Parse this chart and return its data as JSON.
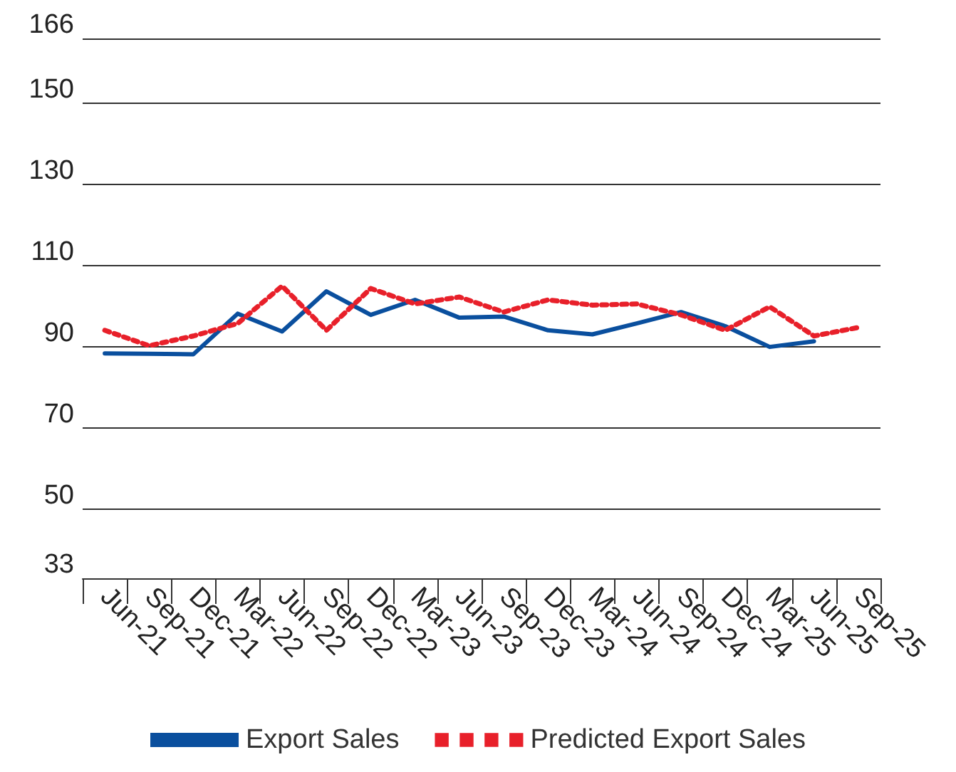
{
  "chart_data": {
    "type": "line",
    "categories": [
      "Jun-21",
      "Sep-21",
      "Dec-21",
      "Mar-22",
      "Jun-22",
      "Sep-22",
      "Dec-22",
      "Mar-23",
      "Jun-23",
      "Sep-23",
      "Dec-23",
      "Mar-24",
      "Jun-24",
      "Sep-24",
      "Dec-24",
      "Mar-25",
      "Jun-25",
      "Sep-25"
    ],
    "series": [
      {
        "name": "Export Sales",
        "color": "#0a4f9e",
        "line_style": "solid",
        "values": [
          88.4,
          88.3,
          88.2,
          98.2,
          93.8,
          103.7,
          97.9,
          101.6,
          97.2,
          97.5,
          94.1,
          93.1,
          95.8,
          98.6,
          95.1,
          90.0,
          91.4,
          null
        ]
      },
      {
        "name": "Predicted Export Sales",
        "color": "#e8202a",
        "line_style": "dotted",
        "values": [
          94.1,
          90.3,
          92.7,
          95.8,
          105.0,
          94.1,
          104.4,
          100.6,
          102.3,
          98.6,
          101.6,
          100.3,
          100.6,
          97.9,
          94.1,
          99.9,
          92.7,
          94.8
        ]
      }
    ],
    "ylim": [
      33,
      166
    ],
    "yticks": [
      33,
      50,
      70,
      90,
      110,
      130,
      150,
      166
    ],
    "grid": "y",
    "legend": "bottom",
    "marker": "none"
  }
}
